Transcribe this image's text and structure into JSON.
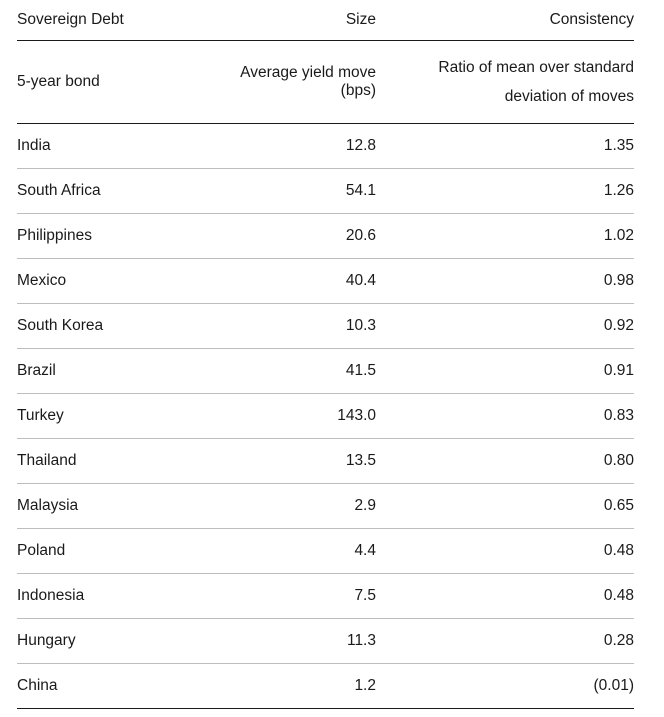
{
  "header": {
    "col1": "Sovereign Debt",
    "col2": "Size",
    "col3": "Consistency"
  },
  "subheader": {
    "col1": "5-year bond",
    "col2": "Average yield move (bps)",
    "col3_line1": "Ratio of mean over standard",
    "col3_line2": "deviation of moves"
  },
  "rows": [
    {
      "country": "India",
      "size": "12.8",
      "consistency": "1.35"
    },
    {
      "country": "South Africa",
      "size": "54.1",
      "consistency": "1.26"
    },
    {
      "country": "Philippines",
      "size": "20.6",
      "consistency": "1.02"
    },
    {
      "country": "Mexico",
      "size": "40.4",
      "consistency": "0.98"
    },
    {
      "country": "South Korea",
      "size": "10.3",
      "consistency": "0.92"
    },
    {
      "country": "Brazil",
      "size": "41.5",
      "consistency": "0.91"
    },
    {
      "country": "Turkey",
      "size": "143.0",
      "consistency": "0.83"
    },
    {
      "country": "Thailand",
      "size": "13.5",
      "consistency": "0.80"
    },
    {
      "country": "Malaysia",
      "size": "2.9",
      "consistency": "0.65"
    },
    {
      "country": "Poland",
      "size": "4.4",
      "consistency": "0.48"
    },
    {
      "country": "Indonesia",
      "size": "7.5",
      "consistency": "0.48"
    },
    {
      "country": "Hungary",
      "size": "11.3",
      "consistency": "0.28"
    },
    {
      "country": "China",
      "size": "1.2",
      "consistency": "(0.01)"
    }
  ]
}
